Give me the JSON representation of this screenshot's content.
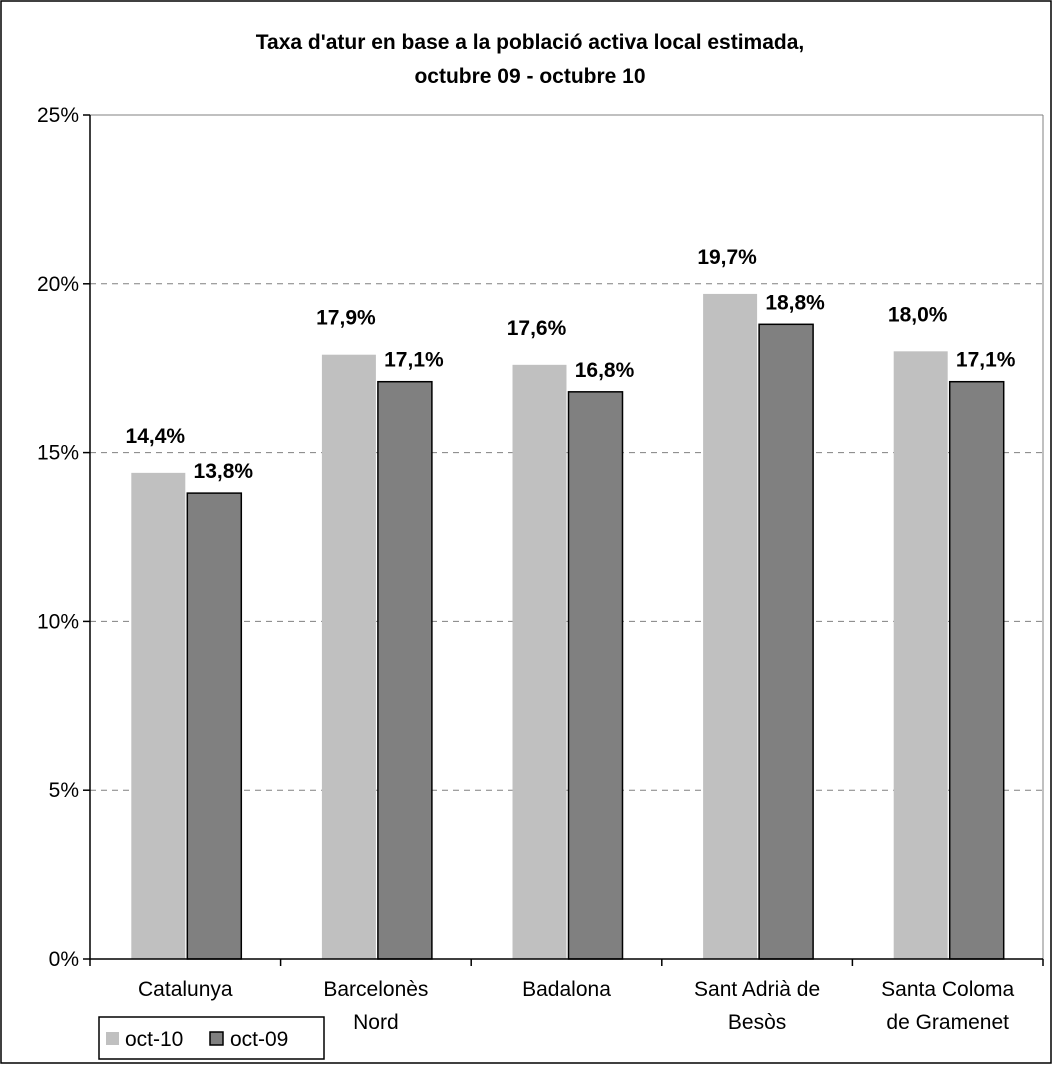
{
  "chart_data": {
    "type": "bar",
    "title_lines": [
      "Taxa d'atur en base a la població activa local estimada,",
      "octubre 09 - octubre 10"
    ],
    "categories": [
      [
        "Catalunya"
      ],
      [
        "Barcelonès",
        "Nord"
      ],
      [
        "Badalona"
      ],
      [
        "Sant Adrià de",
        "Besòs"
      ],
      [
        "Santa Coloma",
        "de Gramenet"
      ]
    ],
    "series": [
      {
        "name": "oct-10",
        "color": "#c0c0c0",
        "values": [
          14.4,
          17.9,
          17.6,
          19.7,
          18.0
        ],
        "labels": [
          "14,4%",
          "17,9%",
          "17,6%",
          "19,7%",
          "18,0%"
        ]
      },
      {
        "name": "oct-09",
        "color": "#808080",
        "values": [
          13.8,
          17.1,
          16.8,
          18.8,
          17.1
        ],
        "labels": [
          "13,8%",
          "17,1%",
          "16,8%",
          "18,8%",
          "17,1%"
        ]
      }
    ],
    "ylim": [
      0,
      25
    ],
    "yticks": [
      0,
      5,
      10,
      15,
      20,
      25
    ],
    "ytick_labels": [
      "0%",
      "5%",
      "10%",
      "15%",
      "20%",
      "25%"
    ],
    "grid": "dashed horizontal",
    "legend_position": "bottom-left"
  }
}
